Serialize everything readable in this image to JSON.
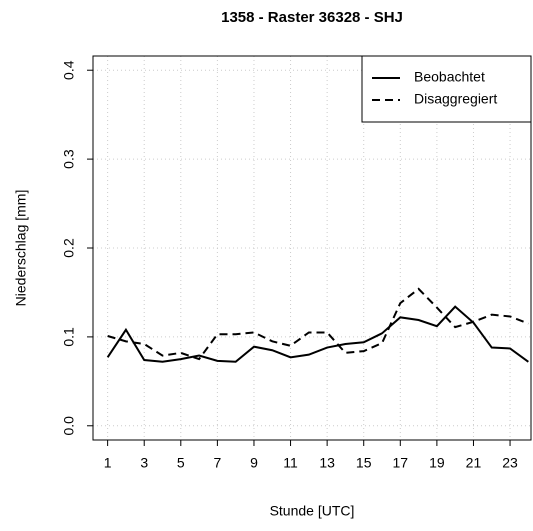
{
  "chart_data": {
    "type": "line",
    "title": "1358 - Raster 36328 - SHJ",
    "x_label": "Stunde [UTC]",
    "y_label": "Niederschlag [mm]",
    "x": [
      1,
      2,
      3,
      4,
      5,
      6,
      7,
      8,
      9,
      10,
      11,
      12,
      13,
      14,
      15,
      16,
      17,
      18,
      19,
      20,
      21,
      22,
      23,
      24
    ],
    "series": [
      {
        "name": "Beobachtet",
        "color": "#000000",
        "dash": "solid",
        "values": [
          0.077,
          0.108,
          0.074,
          0.072,
          0.075,
          0.079,
          0.073,
          0.072,
          0.089,
          0.085,
          0.077,
          0.08,
          0.088,
          0.092,
          0.094,
          0.104,
          0.122,
          0.119,
          0.112,
          0.134,
          0.116,
          0.088,
          0.087,
          0.072
        ]
      },
      {
        "name": "Disaggregiert",
        "color": "#000000",
        "dash": "dashed",
        "values": [
          0.101,
          0.095,
          0.092,
          0.079,
          0.082,
          0.075,
          0.103,
          0.103,
          0.105,
          0.095,
          0.09,
          0.105,
          0.105,
          0.082,
          0.084,
          0.093,
          0.138,
          0.154,
          0.133,
          0.111,
          0.117,
          0.125,
          0.123,
          0.115
        ]
      }
    ],
    "xlim": [
      0.2,
      24.2
    ],
    "xticks": [
      1,
      3,
      5,
      7,
      9,
      11,
      13,
      15,
      17,
      19,
      21,
      23
    ],
    "ylim": [
      -0.016,
      0.416
    ],
    "yticks": [
      {
        "value": 0,
        "label": "0.0"
      },
      0.1,
      0.2,
      0.3,
      0.4
    ],
    "grid": true,
    "legend": "top-right"
  }
}
